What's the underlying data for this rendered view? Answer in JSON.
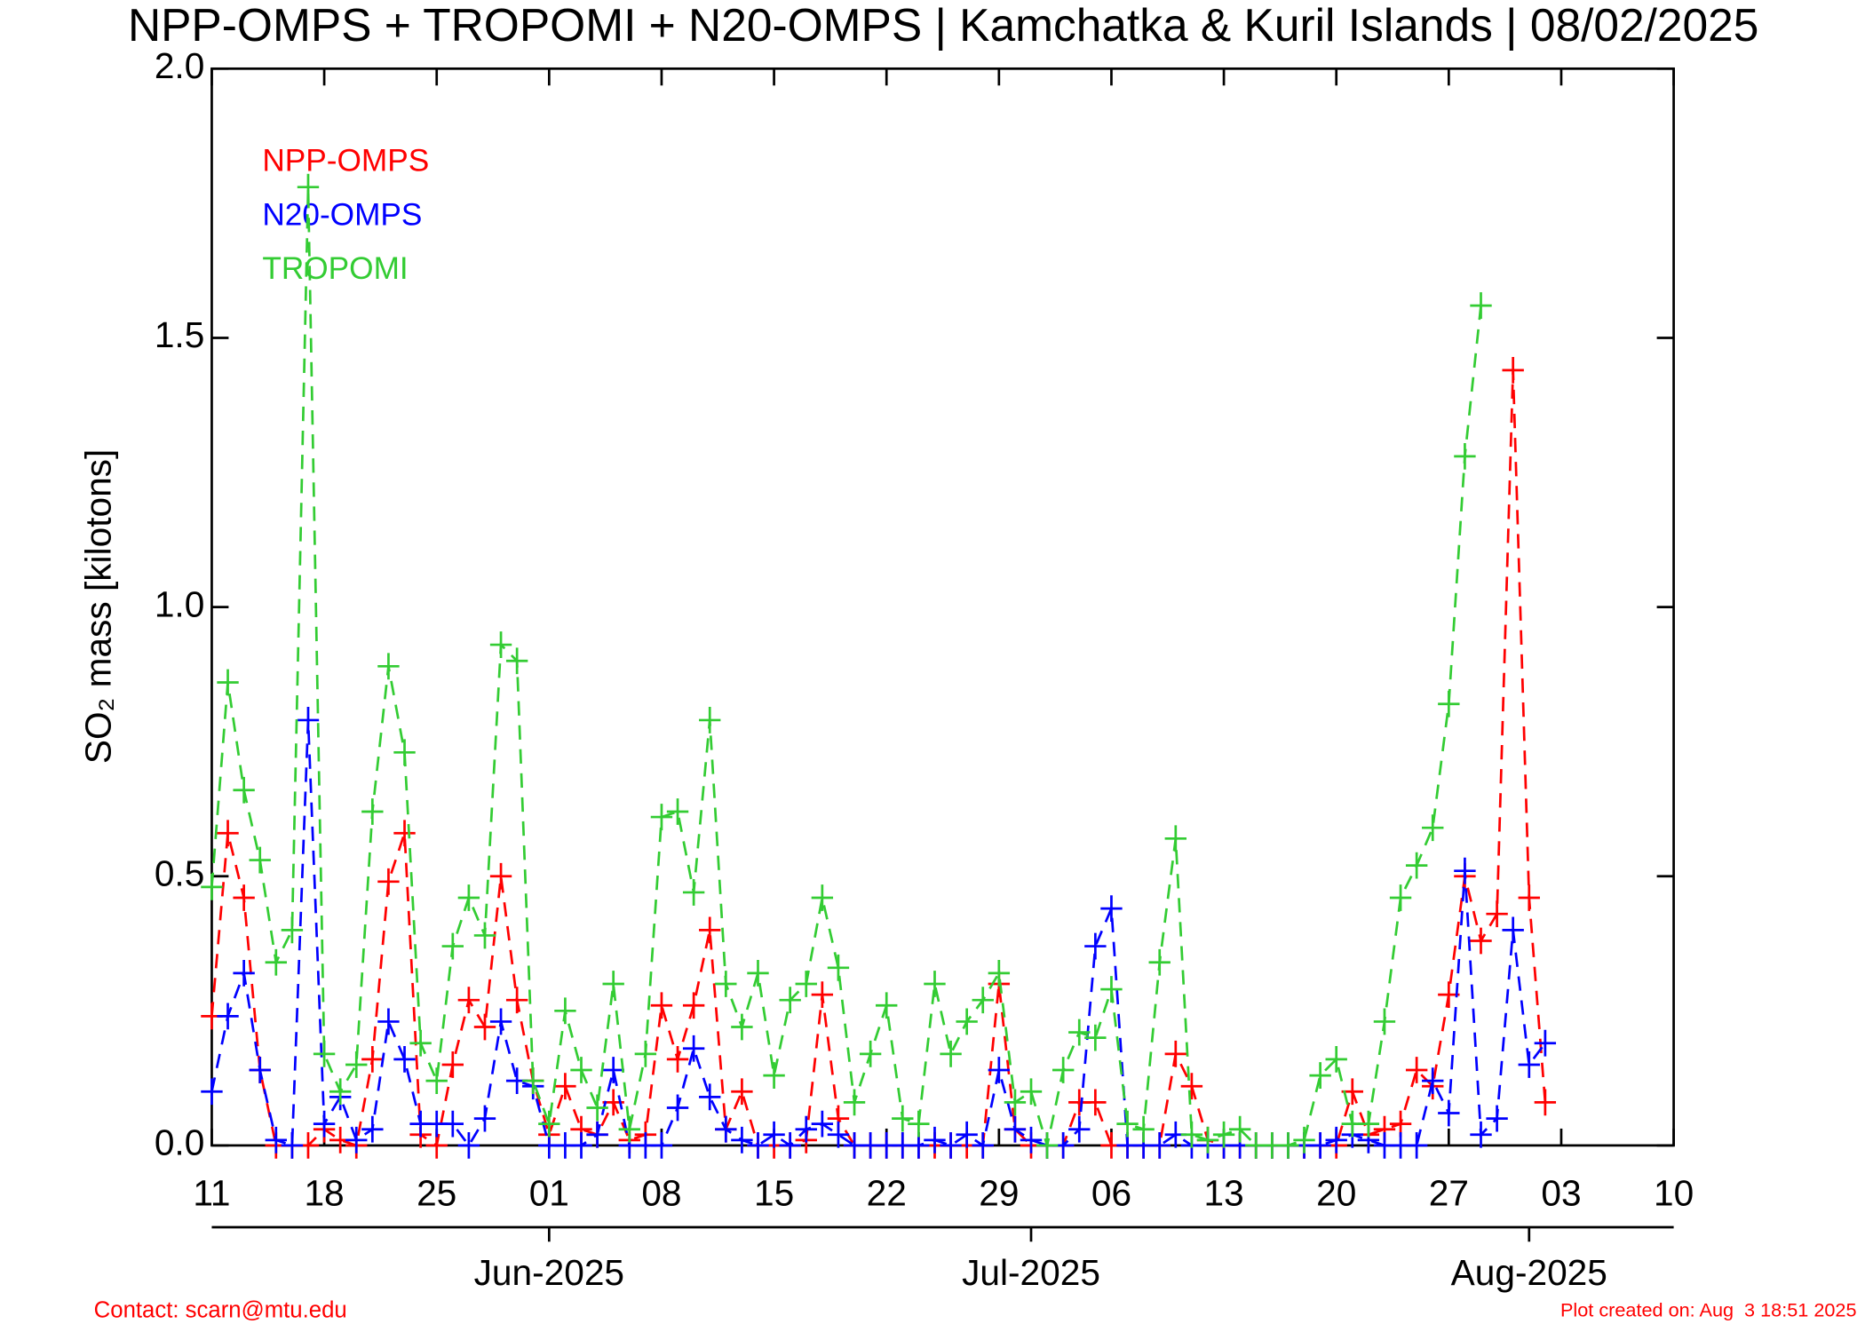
{
  "chart_data": {
    "type": "line",
    "title": "NPP-OMPS + TROPOMI + N20-OMPS | Kamchatka & Kuril Islands | 08/02/2025",
    "y_label": "SO₂ mass [kilotons]",
    "x": [
      "2025-05-11",
      "2025-05-12",
      "2025-05-13",
      "2025-05-14",
      "2025-05-15",
      "2025-05-16",
      "2025-05-17",
      "2025-05-18",
      "2025-05-19",
      "2025-05-20",
      "2025-05-21",
      "2025-05-22",
      "2025-05-23",
      "2025-05-24",
      "2025-05-25",
      "2025-05-26",
      "2025-05-27",
      "2025-05-28",
      "2025-05-29",
      "2025-05-30",
      "2025-05-31",
      "2025-06-01",
      "2025-06-02",
      "2025-06-03",
      "2025-06-04",
      "2025-06-05",
      "2025-06-06",
      "2025-06-07",
      "2025-06-08",
      "2025-06-09",
      "2025-06-10",
      "2025-06-11",
      "2025-06-12",
      "2025-06-13",
      "2025-06-14",
      "2025-06-15",
      "2025-06-16",
      "2025-06-17",
      "2025-06-18",
      "2025-06-19",
      "2025-06-20",
      "2025-06-21",
      "2025-06-22",
      "2025-06-23",
      "2025-06-24",
      "2025-06-25",
      "2025-06-26",
      "2025-06-27",
      "2025-06-28",
      "2025-06-29",
      "2025-06-30",
      "2025-07-01",
      "2025-07-02",
      "2025-07-03",
      "2025-07-04",
      "2025-07-05",
      "2025-07-06",
      "2025-07-07",
      "2025-07-08",
      "2025-07-09",
      "2025-07-10",
      "2025-07-11",
      "2025-07-12",
      "2025-07-13",
      "2025-07-14",
      "2025-07-15",
      "2025-07-16",
      "2025-07-17",
      "2025-07-18",
      "2025-07-19",
      "2025-07-20",
      "2025-07-21",
      "2025-07-22",
      "2025-07-23",
      "2025-07-24",
      "2025-07-25",
      "2025-07-26",
      "2025-07-27",
      "2025-07-28",
      "2025-07-29",
      "2025-07-30",
      "2025-07-31",
      "2025-08-01",
      "2025-08-02"
    ],
    "series": [
      {
        "name": "NPP-OMPS",
        "color": "#ff0000",
        "values": [
          0.24,
          0.58,
          0.46,
          0.14,
          0,
          0,
          0,
          0.03,
          0.01,
          0,
          0.16,
          0.49,
          0.58,
          0.02,
          0,
          0.15,
          0.27,
          0.22,
          0.5,
          0.27,
          0.12,
          0.02,
          0.11,
          0.03,
          0.02,
          0.08,
          0.01,
          0.02,
          0.26,
          0.16,
          0.26,
          0.4,
          0.03,
          0.1,
          0,
          0,
          0,
          0.01,
          0.28,
          0.05,
          0,
          0,
          0,
          0,
          0,
          0,
          0,
          0,
          0,
          0.3,
          0.03,
          0,
          0,
          0,
          0.08,
          0.08,
          0,
          0,
          0,
          0,
          0.17,
          0.11,
          0.01,
          0,
          0,
          0,
          0,
          0,
          0,
          0,
          0,
          0.1,
          0.02,
          0.03,
          0.04,
          0.14,
          0.11,
          0.28,
          0.5,
          0.38,
          0.43,
          1.44,
          0.46,
          0.08
        ]
      },
      {
        "name": "N20-OMPS",
        "color": "#0000ff",
        "values": [
          0.1,
          0.24,
          0.32,
          0.14,
          0.01,
          0,
          0.79,
          0.04,
          0.09,
          0.01,
          0.03,
          0.23,
          0.16,
          0.04,
          0.04,
          0.04,
          0,
          0.05,
          0.23,
          0.12,
          0.11,
          0,
          0,
          0,
          0.02,
          0.14,
          0,
          0,
          0,
          0.07,
          0.18,
          0.09,
          0.03,
          0.01,
          0,
          0.02,
          0,
          0.03,
          0.04,
          0.02,
          0,
          0,
          0,
          0,
          0,
          0.01,
          0,
          0.02,
          0,
          0.14,
          0.03,
          0.01,
          0,
          0,
          0.03,
          0.37,
          0.44,
          0,
          0,
          0,
          0.02,
          0,
          0,
          0,
          0,
          0,
          0,
          0,
          0,
          0,
          0.01,
          0.02,
          0.01,
          0,
          0,
          0,
          0.12,
          0.06,
          0.51,
          0.02,
          0.05,
          0.4,
          0.15,
          0.19
        ]
      },
      {
        "name": "TROPOMI",
        "color": "#33cc33",
        "values": [
          0.48,
          0.86,
          0.66,
          0.53,
          0.34,
          0.4,
          1.78,
          0.17,
          0.1,
          0.15,
          0.62,
          0.89,
          0.73,
          0.19,
          0.12,
          0.37,
          0.46,
          0.39,
          0.93,
          0.9,
          0.12,
          0.04,
          0.25,
          0.14,
          0.07,
          0.3,
          0.03,
          0.17,
          0.61,
          0.62,
          0.47,
          0.79,
          0.3,
          0.22,
          0.32,
          0.13,
          0.27,
          0.3,
          0.46,
          0.33,
          0.08,
          0.17,
          0.26,
          0.05,
          0.04,
          0.3,
          0.17,
          0.23,
          0.27,
          0.32,
          0.08,
          0.1,
          0,
          0.14,
          0.21,
          0.2,
          0.29,
          0.04,
          0.03,
          0.34,
          0.57,
          0.02,
          0.01,
          0.02,
          0.03,
          0,
          0,
          0,
          0.01,
          0.13,
          0.16,
          0.04,
          0.04,
          0.23,
          0.46,
          0.52,
          0.59,
          0.82,
          1.28,
          1.56,
          null,
          null,
          null,
          null
        ]
      }
    ],
    "xlim": [
      "2025-05-11",
      "2025-08-10"
    ],
    "xticks": [
      {
        "value": "2025-05-11",
        "label": "11"
      },
      {
        "value": "2025-05-18",
        "label": "18"
      },
      {
        "value": "2025-05-25",
        "label": "25"
      },
      {
        "value": "2025-06-01",
        "label": "01"
      },
      {
        "value": "2025-06-08",
        "label": "08"
      },
      {
        "value": "2025-06-15",
        "label": "15"
      },
      {
        "value": "2025-06-22",
        "label": "22"
      },
      {
        "value": "2025-06-29",
        "label": "29"
      },
      {
        "value": "2025-07-06",
        "label": "06"
      },
      {
        "value": "2025-07-13",
        "label": "13"
      },
      {
        "value": "2025-07-20",
        "label": "20"
      },
      {
        "value": "2025-07-27",
        "label": "27"
      },
      {
        "value": "2025-08-03",
        "label": "03"
      },
      {
        "value": "2025-08-10",
        "label": "10"
      }
    ],
    "xticks2": [
      {
        "value": "2025-06-01",
        "label": "Jun-2025"
      },
      {
        "value": "2025-07-01",
        "label": "Jul-2025"
      },
      {
        "value": "2025-08-01",
        "label": "Aug-2025"
      }
    ],
    "ylim": [
      0,
      2
    ],
    "yticks": [
      {
        "value": 0,
        "label": "0.0"
      },
      0.5,
      {
        "value": 1,
        "label": "1.0"
      },
      1.5,
      {
        "value": 2,
        "label": "2.0"
      }
    ],
    "legend": "top-left",
    "contact": "Contact: scarn@mtu.edu",
    "created": "Plot created on: Aug  3 18:51 2025"
  }
}
